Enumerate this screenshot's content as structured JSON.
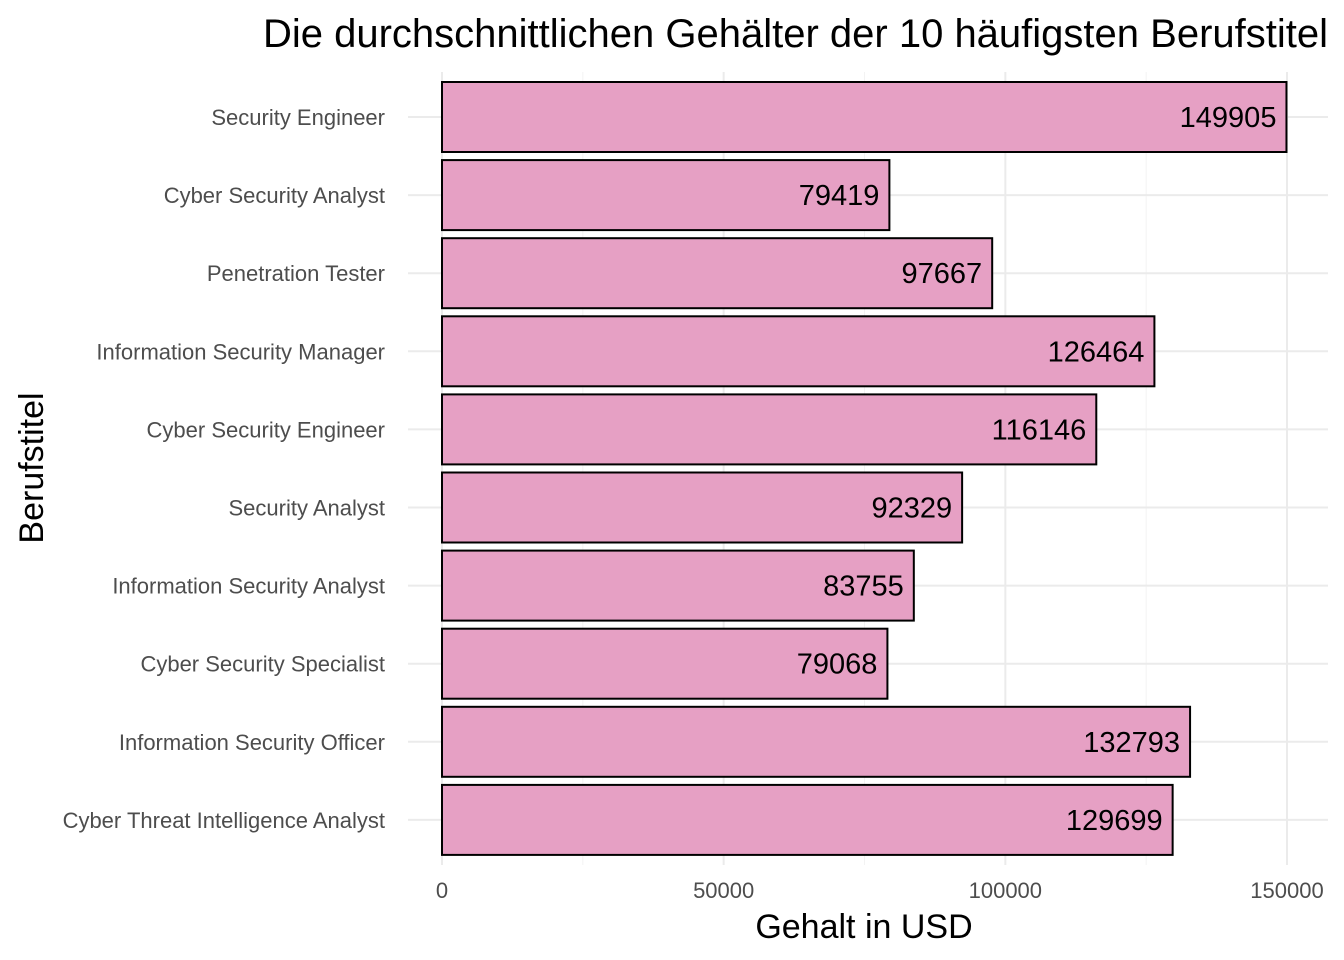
{
  "chart_data": {
    "type": "bar",
    "orientation": "horizontal",
    "title": "Die durchschnittlichen Gehälter der 10 häufigsten Berufstitel",
    "xlabel": "Gehalt in USD",
    "ylabel": "Berufstitel",
    "categories": [
      "Security Engineer",
      "Cyber Security Analyst",
      "Penetration Tester",
      "Information Security Manager",
      "Cyber Security Engineer",
      "Security Analyst",
      "Information Security Analyst",
      "Cyber Security Specialist",
      "Information Security Officer",
      "Cyber Threat Intelligence Analyst"
    ],
    "values": [
      149905,
      79419,
      97667,
      126464,
      116146,
      92329,
      83755,
      79068,
      132793,
      129699
    ],
    "xlim": [
      0,
      150000
    ],
    "x_ticks": [
      0,
      50000,
      100000,
      150000
    ],
    "x_tick_labels": [
      "0",
      "50000",
      "100000",
      "150000"
    ],
    "grid": true,
    "legend": "none",
    "bar_fill": "#e6a0c4",
    "bar_stroke": "#000000"
  }
}
